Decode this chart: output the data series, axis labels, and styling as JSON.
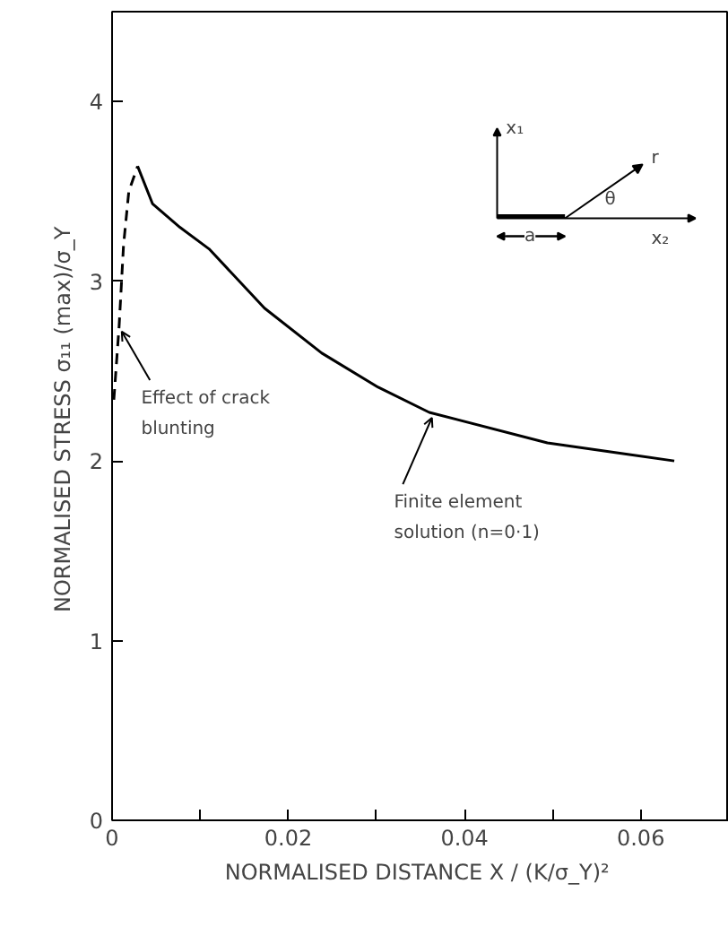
{
  "chart_data": {
    "type": "line",
    "xlabel": "NORMALISED DISTANCE  X / (K/σ_Y)²",
    "ylabel": "NORMALISED STRESS  σ₁₁ (max)/σ_Y",
    "xlim": [
      0,
      0.07
    ],
    "ylim": [
      0,
      4.5
    ],
    "xticks": [
      {
        "value": 0,
        "label": "0"
      },
      {
        "value": 0.01,
        "label": null
      },
      {
        "value": 0.02,
        "label": "0.02"
      },
      {
        "value": 0.03,
        "label": null
      },
      {
        "value": 0.04,
        "label": "0.04"
      },
      {
        "value": 0.05,
        "label": null
      },
      {
        "value": 0.06,
        "label": "0.06"
      }
    ],
    "yticks": [
      0,
      1,
      2,
      3,
      4
    ],
    "grid": false,
    "series": [
      {
        "color": "#000000",
        "line_style": "dashed",
        "x": [
          0.0002,
          0.0008,
          0.0013,
          0.0019,
          0.0029
        ],
        "values": [
          2.34,
          2.75,
          3.2,
          3.5,
          3.64
        ]
      },
      {
        "color": "#000000",
        "line_style": "solid",
        "x": [
          0.0029,
          0.0046,
          0.0077,
          0.011,
          0.0173,
          0.0238,
          0.0302,
          0.036,
          0.0494,
          0.0638
        ],
        "values": [
          3.64,
          3.43,
          3.3,
          3.18,
          2.85,
          2.6,
          2.41,
          2.27,
          2.1,
          2.0
        ]
      }
    ],
    "annotations": [
      {
        "text": "Effect of crack\nblunting",
        "x": 0.0008,
        "y": 2.75
      },
      {
        "text": "Finite element\nsolution (n=0·1)",
        "x": 0.036,
        "y": 2.27
      },
      "x₁",
      "r",
      "θ",
      "a",
      "x₂"
    ]
  }
}
